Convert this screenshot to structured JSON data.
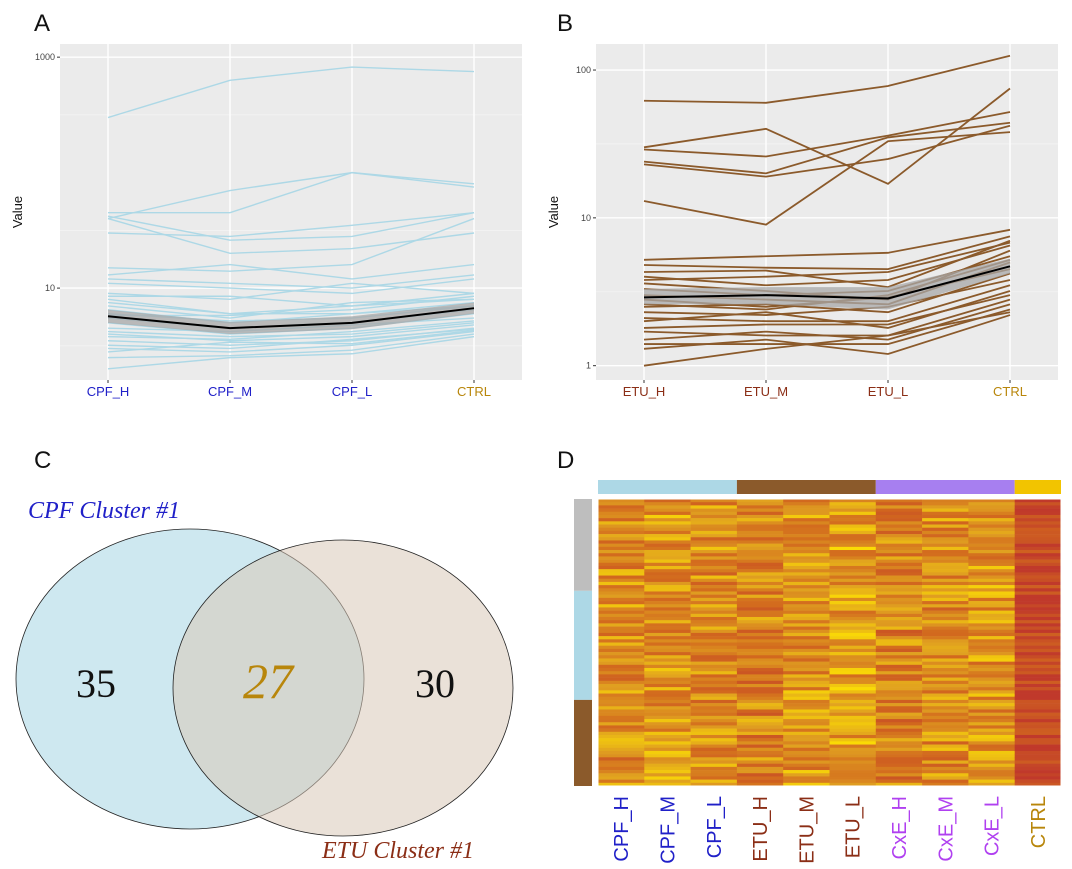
{
  "panels": {
    "a": "A",
    "b": "B",
    "c": "C",
    "d": "D"
  },
  "colors": {
    "cpf": "#add8e6",
    "etu": "#8b5a2b",
    "cxe": "#a77ff0",
    "ctrl": "#f2c400",
    "cpf_label": "#2020c8",
    "etu_label": "#8b2e16",
    "cxe_label": "#b040f0",
    "ctrl_label": "#b8860b",
    "panel_bg": "#ebebeb",
    "grid": "#ffffff",
    "mean_line": "#000000",
    "ribbon": "#a8a8a8"
  },
  "chart_data": [
    {
      "type": "line",
      "panel": "A",
      "title": "",
      "ylabel": "Value",
      "xlabel": "",
      "categories": [
        "CPF_H",
        "CPF_M",
        "CPF_L",
        "CTRL"
      ],
      "y_scale": "log10",
      "ylim": [
        1.6,
        1300
      ],
      "y_ticks": [
        {
          "value": 10,
          "label": "10"
        },
        {
          "value": 1000,
          "label": "1000"
        }
      ],
      "grid": true,
      "line_color": "#add8e6",
      "series": [
        {
          "values": [
            300,
            630,
            820,
            750
          ]
        },
        {
          "values": [
            45,
            45,
            100,
            80
          ]
        },
        {
          "values": [
            40,
            70,
            100,
            75
          ]
        },
        {
          "values": [
            42,
            26,
            28,
            45
          ]
        },
        {
          "values": [
            40,
            20,
            22,
            30
          ]
        },
        {
          "values": [
            30,
            28,
            35,
            45
          ]
        },
        {
          "values": [
            15,
            14,
            16,
            40
          ]
        },
        {
          "values": [
            13,
            16,
            12,
            16
          ]
        },
        {
          "values": [
            12,
            11,
            10,
            13
          ]
        },
        {
          "values": [
            11,
            10,
            9,
            12
          ]
        },
        {
          "values": [
            9,
            8,
            11,
            9
          ]
        },
        {
          "values": [
            8,
            6,
            7,
            8
          ]
        },
        {
          "values": [
            7.5,
            6,
            6,
            7
          ]
        },
        {
          "values": [
            7,
            5.5,
            7.5,
            8
          ]
        },
        {
          "values": [
            6.5,
            5,
            6,
            7.5
          ]
        },
        {
          "values": [
            6,
            5.2,
            5.5,
            7
          ]
        },
        {
          "values": [
            5.5,
            4.5,
            5,
            6.5
          ]
        },
        {
          "values": [
            5,
            4,
            4.5,
            6
          ]
        },
        {
          "values": [
            4.5,
            4.2,
            4.8,
            5.5
          ]
        },
        {
          "values": [
            4.2,
            3.8,
            4,
            5
          ]
        },
        {
          "values": [
            4,
            3.5,
            3.8,
            4.8
          ]
        },
        {
          "values": [
            3.8,
            3.6,
            4.2,
            5.2
          ]
        },
        {
          "values": [
            3.5,
            3.2,
            3.5,
            4.5
          ]
        },
        {
          "values": [
            3.2,
            3,
            3.6,
            4.4
          ]
        },
        {
          "values": [
            3,
            2.8,
            3.2,
            4.2
          ]
        },
        {
          "values": [
            2.8,
            3.4,
            3.3,
            4.3
          ]
        },
        {
          "values": [
            2.5,
            2.6,
            2.9,
            4.0
          ]
        },
        {
          "values": [
            2.0,
            2.5,
            2.7,
            3.8
          ]
        },
        {
          "values": [
            8.5,
            8.5,
            7,
            9
          ]
        },
        {
          "values": [
            5.8,
            5.8,
            6.5,
            8.5
          ]
        }
      ],
      "mean": {
        "values": [
          5.7,
          4.5,
          5.0,
          6.7
        ]
      },
      "ribbon": {
        "lower": [
          5.0,
          4.0,
          4.4,
          6.0
        ],
        "upper": [
          6.5,
          5.1,
          5.7,
          7.5
        ]
      }
    },
    {
      "type": "line",
      "panel": "B",
      "title": "",
      "ylabel": "Value",
      "xlabel": "",
      "categories": [
        "ETU_H",
        "ETU_M",
        "ETU_L",
        "CTRL"
      ],
      "y_scale": "log10",
      "ylim": [
        0.8,
        150
      ],
      "y_ticks": [
        {
          "value": 1,
          "label": "1"
        },
        {
          "value": 10,
          "label": "10"
        },
        {
          "value": 100,
          "label": "100"
        }
      ],
      "grid": true,
      "line_color": "#8b5a2b",
      "series": [
        {
          "values": [
            62,
            60,
            78,
            125
          ]
        },
        {
          "values": [
            30,
            40,
            17,
            75
          ]
        },
        {
          "values": [
            29,
            26,
            36,
            52
          ]
        },
        {
          "values": [
            24,
            20,
            35,
            44
          ]
        },
        {
          "values": [
            23,
            19,
            25,
            42
          ]
        },
        {
          "values": [
            13,
            9,
            33,
            38
          ]
        },
        {
          "values": [
            5.2,
            5.5,
            5.8,
            8.3
          ]
        },
        {
          "values": [
            4.8,
            4.6,
            4.5,
            7.5
          ]
        },
        {
          "values": [
            4.3,
            4.4,
            3.4,
            7.0
          ]
        },
        {
          "values": [
            4.0,
            3.5,
            3.8,
            6.5
          ]
        },
        {
          "values": [
            3.6,
            3.2,
            2.8,
            6.0
          ]
        },
        {
          "values": [
            3.3,
            3.0,
            3.2,
            5.5
          ]
        },
        {
          "values": [
            3.0,
            2.8,
            2.6,
            5.0
          ]
        },
        {
          "values": [
            2.8,
            2.5,
            2.9,
            4.5
          ]
        },
        {
          "values": [
            2.5,
            2.6,
            2.3,
            4.2
          ]
        },
        {
          "values": [
            2.3,
            2.2,
            2.5,
            3.8
          ]
        },
        {
          "values": [
            2.1,
            2.0,
            2.0,
            3.5
          ]
        },
        {
          "values": [
            2.0,
            2.3,
            1.8,
            3.2
          ]
        },
        {
          "values": [
            1.8,
            1.9,
            1.9,
            3.0
          ]
        },
        {
          "values": [
            1.7,
            1.6,
            1.6,
            2.8
          ]
        },
        {
          "values": [
            1.5,
            1.7,
            1.5,
            2.6
          ]
        },
        {
          "values": [
            1.4,
            1.4,
            1.4,
            2.4
          ]
        },
        {
          "values": [
            1.3,
            1.5,
            1.2,
            2.2
          ]
        },
        {
          "values": [
            1.0,
            1.3,
            1.6,
            2.3
          ]
        },
        {
          "values": [
            3.8,
            4.0,
            4.3,
            6.8
          ]
        },
        {
          "values": [
            2.6,
            2.4,
            3.0,
            5.2
          ]
        }
      ],
      "mean": {
        "values": [
          2.9,
          3.0,
          2.85,
          4.7
        ]
      },
      "ribbon": {
        "lower": [
          2.6,
          2.6,
          2.4,
          4.2
        ],
        "upper": [
          3.3,
          3.4,
          3.4,
          5.3
        ]
      }
    },
    {
      "type": "venn",
      "panel": "C",
      "sets": [
        {
          "name": "CPF Cluster #1",
          "only": 35,
          "color": "#add8e6",
          "label_color": "#2020c8"
        },
        {
          "name": "ETU Cluster #1",
          "only": 30,
          "color": "#d8c8b8",
          "label_color": "#8b2e16"
        }
      ],
      "intersection": 27,
      "intersection_color": "#b8860b"
    },
    {
      "type": "heatmap",
      "panel": "D",
      "columns": [
        "CPF_H",
        "CPF_M",
        "CPF_L",
        "ETU_H",
        "ETU_M",
        "ETU_L",
        "CxE_H",
        "CxE_M",
        "CxE_L",
        "CTRL"
      ],
      "column_groups": [
        {
          "name": "CPF",
          "span": 3,
          "color": "#add8e6",
          "label_color": "#2020c8"
        },
        {
          "name": "ETU",
          "span": 3,
          "color": "#8b5a2b",
          "label_color": "#8b2e16"
        },
        {
          "name": "CxE",
          "span": 3,
          "color": "#a77ff0",
          "label_color": "#b040f0"
        },
        {
          "name": "CTRL",
          "span": 1,
          "color": "#f2c400",
          "label_color": "#b8860b"
        }
      ],
      "row_groups": [
        {
          "fraction": 0.32,
          "color": "#bebebe"
        },
        {
          "fraction": 0.38,
          "color": "#add8e6"
        },
        {
          "fraction": 0.3,
          "color": "#8b5a2b"
        }
      ],
      "rows": 90,
      "color_scale": [
        "#c0392b",
        "#d2691e",
        "#e0a020",
        "#ffe600"
      ],
      "column_mean_level": [
        0.55,
        0.6,
        0.55,
        0.5,
        0.6,
        0.65,
        0.5,
        0.55,
        0.6,
        0.1
      ]
    }
  ]
}
